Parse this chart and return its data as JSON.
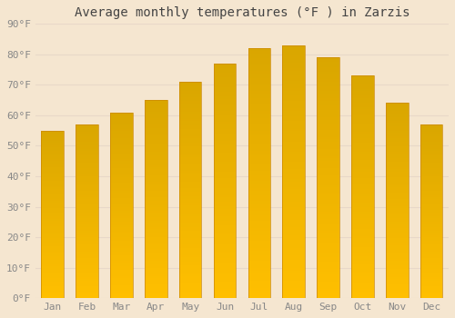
{
  "title": "Average monthly temperatures (°F ) in Zarzis",
  "months": [
    "Jan",
    "Feb",
    "Mar",
    "Apr",
    "May",
    "Jun",
    "Jul",
    "Aug",
    "Sep",
    "Oct",
    "Nov",
    "Dec"
  ],
  "values": [
    55,
    57,
    61,
    65,
    71,
    77,
    82,
    83,
    79,
    73,
    64,
    57
  ],
  "bar_color_top": "#FFA500",
  "bar_color_bottom": "#FFD966",
  "background_color": "#F5E6D0",
  "grid_color": "#E8D8C8",
  "tick_label_color": "#888888",
  "title_color": "#444444",
  "ylim": [
    0,
    90
  ],
  "yticks": [
    0,
    10,
    20,
    30,
    40,
    50,
    60,
    70,
    80,
    90
  ],
  "title_fontsize": 10,
  "tick_fontsize": 8,
  "figsize": [
    5.0,
    3.5
  ],
  "dpi": 100
}
